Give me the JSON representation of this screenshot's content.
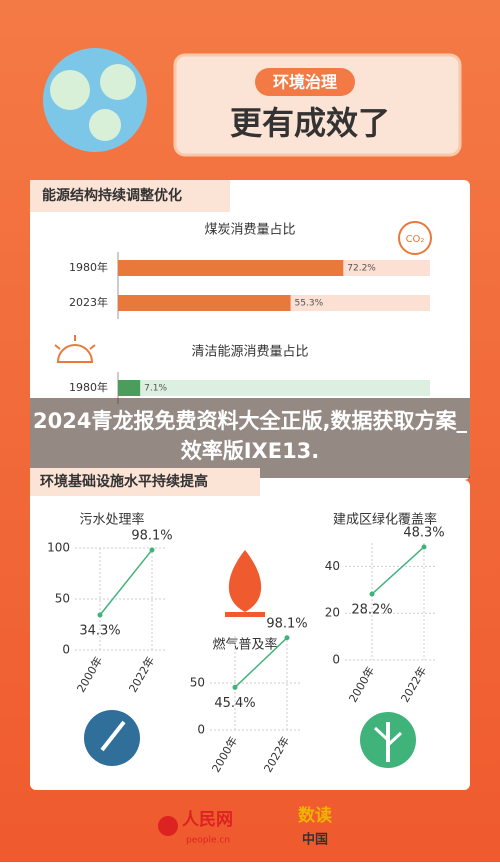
{
  "header": {
    "tag": "环境治理",
    "title": "更有成效了"
  },
  "sections": [
    {
      "title": "能源结构持续调整优化"
    },
    {
      "title": "环境基础设施水平持续提高"
    }
  ],
  "overlay": "2024青龙报免费资料大全正版,数据获取方案_效率版IXE13.",
  "footer": {
    "brand": "人民网",
    "site": "people.cn",
    "partner_top": "数读",
    "partner_bottom": "中国"
  },
  "chart_data": [
    {
      "type": "hbar",
      "title": "煤炭消费量占比",
      "categories": [
        "1980年",
        "2023年"
      ],
      "values": [
        72.2,
        55.3
      ],
      "value_labels": [
        "72.2%",
        "55.3%"
      ],
      "xlim": [
        0,
        100
      ],
      "color": "#e8793a",
      "track_color": "#fbe0d3"
    },
    {
      "type": "hbar",
      "title": "清洁能源消费量占比",
      "categories": [
        "1980年"
      ],
      "values": [
        7.1
      ],
      "value_labels": [
        "7.1%"
      ],
      "xlim": [
        0,
        100
      ],
      "color": "#4a9d5b",
      "track_color": "#dcefe0"
    },
    {
      "type": "line",
      "title": "污水处理率",
      "categories": [
        "2000年",
        "2022年"
      ],
      "values": [
        34.3,
        98.1
      ],
      "value_labels": [
        "34.3%",
        "98.1%"
      ],
      "ylim": [
        0,
        100
      ],
      "yticks": [
        0,
        50,
        100
      ],
      "color": "#3fb37a"
    },
    {
      "type": "line",
      "title": "燃气普及率",
      "categories": [
        "2000年",
        "2022年"
      ],
      "values": [
        45.4,
        98.1
      ],
      "value_labels": [
        "45.4%",
        "98.1%"
      ],
      "ylim": [
        0,
        100
      ],
      "yticks": [
        0,
        50
      ],
      "color": "#3fb37a"
    },
    {
      "type": "line",
      "title": "建成区绿化覆盖率",
      "categories": [
        "2000年",
        "2022年"
      ],
      "values": [
        28.2,
        48.3
      ],
      "value_labels": [
        "28.2%",
        "48.3%"
      ],
      "ylim": [
        0,
        50
      ],
      "yticks": [
        0,
        20,
        40
      ],
      "color": "#3fb37a"
    }
  ]
}
